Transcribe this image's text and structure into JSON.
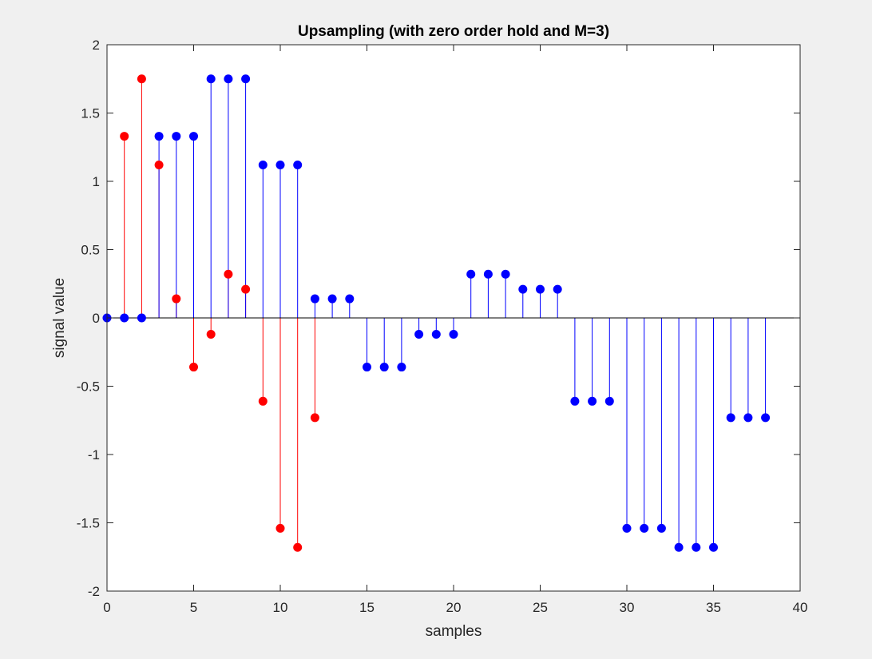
{
  "chart_data": {
    "type": "stem",
    "title": "Upsampling (with zero order hold and M=3)",
    "xlabel": "samples",
    "ylabel": "signal value",
    "xlim": [
      0,
      40
    ],
    "ylim": [
      -2,
      2
    ],
    "xticks": [
      0,
      5,
      10,
      15,
      20,
      25,
      30,
      35,
      40
    ],
    "yticks": [
      2,
      1.5,
      1,
      0.5,
      0,
      -0.5,
      -1,
      -1.5,
      -2
    ],
    "xtick_labels": [
      "0",
      "5",
      "10",
      "15",
      "20",
      "25",
      "30",
      "35",
      "40"
    ],
    "ytick_labels": [
      "2",
      "1.5",
      "1",
      "0.5",
      "0",
      "-0.5",
      "-1",
      "-1.5",
      "-2"
    ],
    "grid": false,
    "series": [
      {
        "color": "#ff0000",
        "x": [
          1,
          2,
          3,
          4,
          5,
          6,
          7,
          8,
          9,
          10,
          11,
          12
        ],
        "values": [
          1.33,
          1.75,
          1.12,
          0.14,
          -0.36,
          -0.12,
          0.32,
          0.21,
          -0.61,
          -1.54,
          -1.68,
          -0.73
        ]
      },
      {
        "color": "#0000ff",
        "x": [
          0,
          1,
          2,
          3,
          4,
          5,
          6,
          7,
          8,
          9,
          10,
          11,
          12,
          13,
          14,
          15,
          16,
          17,
          18,
          19,
          20,
          21,
          22,
          23,
          24,
          25,
          26,
          27,
          28,
          29,
          30,
          31,
          32,
          33,
          34,
          35,
          36,
          37,
          38
        ],
        "values": [
          0,
          0,
          0,
          1.33,
          1.33,
          1.33,
          1.75,
          1.75,
          1.75,
          1.12,
          1.12,
          1.12,
          0.14,
          0.14,
          0.14,
          -0.36,
          -0.36,
          -0.36,
          -0.12,
          -0.12,
          -0.12,
          0.32,
          0.32,
          0.32,
          0.21,
          0.21,
          0.21,
          -0.61,
          -0.61,
          -0.61,
          -1.54,
          -1.54,
          -1.54,
          -1.68,
          -1.68,
          -1.68,
          -0.73,
          -0.73,
          -0.73
        ]
      }
    ]
  }
}
